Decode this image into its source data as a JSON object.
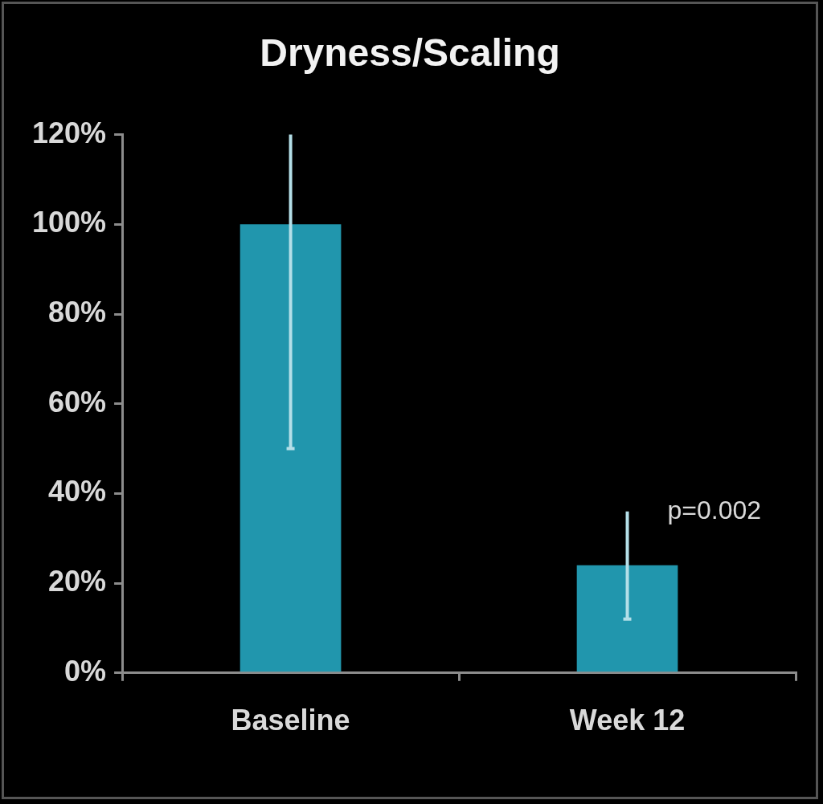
{
  "chart_data": {
    "type": "bar",
    "title": "Dryness/Scaling",
    "categories": [
      "Baseline",
      "Week 12"
    ],
    "values": [
      100,
      24
    ],
    "errors": [
      [
        50,
        120
      ],
      [
        12,
        36
      ]
    ],
    "color": "#2196ad",
    "ylim": [
      0,
      120
    ],
    "yticks": [
      {
        "value": 0,
        "label": "0%"
      },
      {
        "value": 20,
        "label": "20%"
      },
      {
        "value": 40,
        "label": "40%"
      },
      {
        "value": 60,
        "label": "60%"
      },
      {
        "value": 80,
        "label": "80%"
      },
      {
        "value": 100,
        "label": "100%"
      },
      {
        "value": 120,
        "label": "120%"
      }
    ],
    "annotations": [
      {
        "text": "p=0.002",
        "x": "Week 12",
        "y": 36
      }
    ],
    "grid": false,
    "legend": false
  }
}
